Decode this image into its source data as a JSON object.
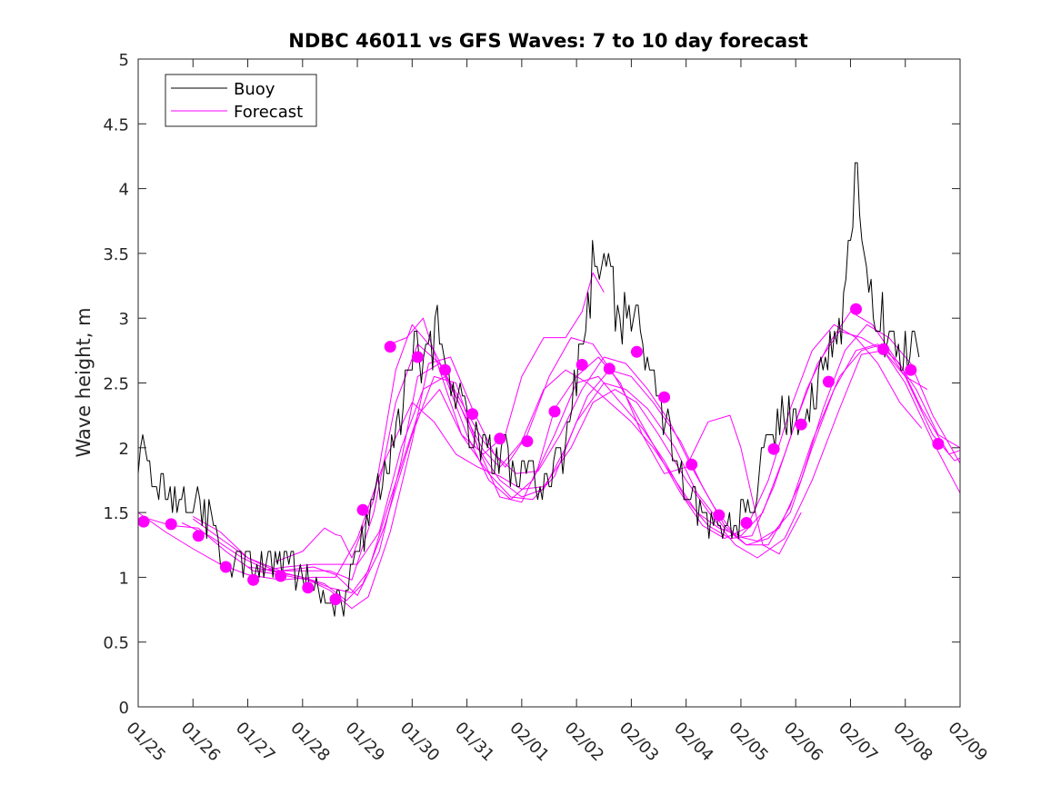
{
  "chart_data": {
    "type": "line",
    "title": "NDBC 46011 vs GFS Waves: 7 to 10 day forecast",
    "xlabel": "",
    "ylabel": "Wave height, m",
    "xlim": [
      0,
      15
    ],
    "ylim": [
      0,
      5
    ],
    "x_tick_labels": [
      "01/25",
      "01/26",
      "01/27",
      "01/28",
      "01/29",
      "01/30",
      "01/31",
      "02/01",
      "02/02",
      "02/03",
      "02/04",
      "02/05",
      "02/06",
      "02/07",
      "02/08",
      "02/09"
    ],
    "y_ticks": [
      0,
      0.5,
      1,
      1.5,
      2,
      2.5,
      3,
      3.5,
      4,
      4.5,
      5
    ],
    "y_tick_labels": [
      "0",
      "0.5",
      "1",
      "1.5",
      "2",
      "2.5",
      "3",
      "3.5",
      "4",
      "4.5",
      "5"
    ],
    "legend": {
      "location": "top-left",
      "entries": [
        "Buoy",
        "Forecast"
      ]
    },
    "colors": {
      "buoy": "#000000",
      "forecast": "#ff00ff"
    },
    "buoy_anchors": {
      "x": [
        0,
        0.05,
        0.2,
        0.5,
        1.0,
        1.3,
        1.6,
        2.0,
        2.5,
        3.0,
        3.3,
        3.5,
        3.7,
        3.9,
        4.0,
        4.3,
        4.6,
        4.9,
        5.05,
        5.2,
        5.5,
        5.7,
        6.0,
        6.4,
        6.8,
        7.0,
        7.3,
        7.5,
        7.8,
        8.0,
        8.15,
        8.3,
        8.6,
        8.9,
        9.2,
        9.5,
        9.8,
        10.0,
        10.3,
        10.6,
        10.9,
        11.0,
        11.2,
        11.5,
        11.8,
        12.0,
        12.4,
        12.8,
        13.0,
        13.1,
        13.25,
        13.4,
        13.7,
        13.9,
        14.1,
        14.25
      ],
      "y": [
        1.8,
        2.1,
        1.8,
        1.6,
        1.6,
        1.45,
        1.1,
        1.1,
        1.1,
        1.05,
        0.9,
        0.8,
        0.75,
        1.1,
        1.15,
        1.6,
        1.9,
        2.5,
        2.9,
        2.7,
        2.9,
        2.5,
        2.2,
        1.95,
        1.9,
        1.85,
        1.7,
        1.8,
        2.0,
        2.6,
        2.7,
        3.5,
        3.2,
        3.0,
        2.8,
        2.4,
        1.9,
        1.7,
        1.5,
        1.45,
        1.4,
        1.45,
        1.6,
        2.0,
        2.3,
        2.2,
        2.5,
        2.9,
        3.5,
        4.2,
        3.3,
        3.1,
        2.9,
        2.8,
        2.75,
        2.65
      ]
    },
    "forecast_dots": {
      "x": [
        0.1,
        0.6,
        1.1,
        1.6,
        2.1,
        2.6,
        3.1,
        3.6,
        4.1,
        4.6,
        5.1,
        5.6,
        6.1,
        6.6,
        7.1,
        7.6,
        8.1,
        8.6,
        9.1,
        9.6,
        10.1,
        10.6,
        11.1,
        11.6,
        12.1,
        12.6,
        13.1,
        13.6,
        14.1,
        14.6
      ],
      "values": [
        1.43,
        1.41,
        1.32,
        1.08,
        0.98,
        1.01,
        0.92,
        0.83,
        1.52,
        2.78,
        2.7,
        2.6,
        2.26,
        2.07,
        2.05,
        2.28,
        2.64,
        2.61,
        2.74,
        2.39,
        1.87,
        1.48,
        1.42,
        1.99,
        2.18,
        2.51,
        3.07,
        2.76,
        2.6,
        2.03
      ]
    },
    "forecast_series": [
      {
        "name": "Forecast 1",
        "x": [
          0.0,
          0.5,
          1.0,
          1.5,
          2.0,
          2.6,
          3.2,
          3.6,
          4.0,
          4.5,
          5.0,
          5.4,
          5.8,
          6.2,
          6.6,
          7.0,
          7.4,
          7.9,
          8.3,
          8.7,
          9.1,
          9.5,
          10.0,
          10.5,
          10.9,
          11.3,
          11.8,
          12.3,
          12.8,
          13.2,
          13.6,
          14.0,
          14.5,
          15.0
        ],
        "y": [
          1.5,
          1.35,
          1.22,
          1.1,
          1.02,
          0.98,
          1.0,
          1.0,
          1.3,
          1.9,
          2.35,
          2.2,
          1.95,
          1.85,
          1.78,
          1.68,
          1.7,
          2.0,
          2.35,
          2.45,
          2.35,
          2.1,
          1.75,
          1.45,
          1.25,
          1.15,
          1.3,
          1.75,
          2.3,
          2.72,
          2.75,
          2.5,
          2.05,
          1.65
        ]
      },
      {
        "name": "Forecast 2",
        "x": [
          0.8,
          1.3,
          1.9,
          2.4,
          3.0,
          3.5,
          3.9,
          4.2,
          4.6,
          5.1,
          5.5,
          5.9,
          6.4,
          6.8,
          7.2,
          7.6,
          8.0,
          8.5,
          8.9,
          9.3,
          9.8,
          10.2,
          10.7,
          11.1,
          11.5,
          11.9,
          12.3,
          12.8,
          13.2,
          13.6,
          14.0,
          14.5,
          14.9,
          15.0
        ],
        "y": [
          1.42,
          1.32,
          1.15,
          1.05,
          1.0,
          0.92,
          0.88,
          1.05,
          1.6,
          2.25,
          2.45,
          2.1,
          1.8,
          1.62,
          1.6,
          1.78,
          2.2,
          2.5,
          2.45,
          2.3,
          2.0,
          1.65,
          1.38,
          1.25,
          1.25,
          1.55,
          2.05,
          2.55,
          2.75,
          2.8,
          2.55,
          2.1,
          1.9,
          1.92
        ]
      },
      {
        "name": "Forecast 3",
        "x": [
          1.0,
          1.5,
          2.0,
          2.5,
          3.0,
          3.4,
          3.8,
          4.1,
          4.5,
          5.0,
          5.4,
          5.8,
          6.2,
          6.6,
          7.0,
          7.4,
          7.8,
          8.2,
          8.6,
          9.0,
          9.4,
          9.9,
          10.3,
          10.7,
          11.1,
          11.5,
          11.9,
          12.3,
          12.7,
          13.1,
          13.5,
          13.9,
          14.3,
          14.8,
          15.0
        ],
        "y": [
          1.45,
          1.3,
          1.15,
          1.05,
          1.0,
          0.95,
          0.82,
          0.95,
          1.4,
          2.1,
          2.55,
          2.5,
          2.0,
          1.75,
          1.62,
          1.68,
          2.0,
          2.4,
          2.6,
          2.55,
          2.35,
          2.05,
          1.7,
          1.4,
          1.25,
          1.3,
          1.5,
          2.0,
          2.45,
          2.75,
          2.8,
          2.65,
          2.3,
          1.95,
          1.98
        ]
      },
      {
        "name": "Forecast 4",
        "x": [
          0.2,
          0.6,
          1.1,
          1.6,
          2.1,
          2.6,
          3.1,
          3.5,
          3.9,
          4.2,
          4.6,
          5.0,
          5.3,
          5.7,
          6.1,
          6.5,
          6.9,
          7.3,
          7.7,
          8.1,
          8.5,
          8.9,
          9.3,
          9.7,
          10.1,
          10.5,
          10.9,
          11.3,
          11.7,
          12.1,
          12.5,
          12.9,
          13.3,
          13.7,
          14.1,
          14.5,
          15.0
        ],
        "y": [
          1.45,
          1.4,
          1.38,
          1.2,
          1.05,
          1.02,
          0.98,
          0.9,
          0.76,
          0.85,
          1.35,
          2.05,
          2.65,
          2.7,
          2.3,
          1.95,
          1.8,
          1.82,
          2.1,
          2.45,
          2.7,
          2.65,
          2.45,
          2.2,
          1.85,
          1.55,
          1.32,
          1.28,
          1.38,
          1.75,
          2.3,
          2.75,
          2.95,
          2.85,
          2.65,
          2.25,
          1.88
        ]
      },
      {
        "name": "Forecast 5",
        "x": [
          1.0,
          1.5,
          2.0,
          2.6,
          3.2,
          3.6,
          4.0,
          4.4,
          4.8,
          5.1,
          5.5,
          5.9,
          6.3,
          6.6,
          7.0,
          7.4,
          7.8,
          8.2,
          8.6,
          9.0,
          9.4,
          9.8,
          10.2,
          10.6,
          11.0,
          11.4,
          11.8,
          12.2,
          12.6,
          13.0,
          13.4,
          13.8,
          14.2,
          14.6,
          15.0
        ],
        "y": [
          1.47,
          1.35,
          1.15,
          1.05,
          1.08,
          1.02,
          0.86,
          1.2,
          1.9,
          2.55,
          2.65,
          2.3,
          1.98,
          1.85,
          2.05,
          2.45,
          2.6,
          2.5,
          2.35,
          2.2,
          2.0,
          1.75,
          1.5,
          1.38,
          1.32,
          1.5,
          1.95,
          2.45,
          2.8,
          3.05,
          2.95,
          2.7,
          2.45,
          2.1,
          2.0
        ]
      },
      {
        "name": "Forecast 6",
        "x": [
          2.0,
          2.5,
          3.0,
          3.5,
          3.9,
          4.3,
          4.7,
          5.1,
          5.5,
          5.9,
          6.3,
          6.7,
          7.1,
          7.5,
          7.9,
          8.3,
          8.7,
          9.1,
          9.5,
          9.9,
          10.3,
          10.7,
          11.1,
          11.5,
          11.9,
          12.3,
          12.7,
          13.1,
          13.5,
          13.9,
          14.3
        ],
        "y": [
          1.08,
          1.05,
          1.05,
          1.05,
          0.98,
          1.5,
          2.35,
          2.8,
          2.65,
          2.35,
          2.05,
          1.85,
          2.1,
          2.55,
          2.85,
          2.8,
          2.55,
          2.25,
          1.95,
          1.65,
          1.4,
          1.3,
          1.38,
          1.75,
          2.3,
          2.75,
          2.95,
          2.85,
          2.65,
          2.35,
          2.15
        ]
      },
      {
        "name": "Forecast 7",
        "x": [
          2.2,
          2.7,
          3.2,
          3.6,
          4.0,
          4.4,
          4.8,
          5.2,
          5.6,
          6.0,
          6.4,
          6.8,
          7.2,
          7.6,
          8.0,
          8.4,
          8.8,
          9.2,
          9.6,
          10.0,
          10.4,
          10.8,
          11.2,
          11.6,
          12.0,
          12.4,
          12.8,
          13.2,
          13.6,
          14.0,
          14.4
        ],
        "y": [
          1.05,
          1.08,
          1.1,
          1.1,
          1.1,
          1.35,
          2.0,
          2.45,
          2.55,
          2.1,
          1.75,
          1.6,
          1.75,
          2.1,
          2.5,
          2.55,
          2.35,
          2.15,
          1.9,
          1.6,
          1.4,
          1.3,
          1.32,
          1.7,
          2.2,
          2.65,
          2.9,
          2.85,
          2.75,
          2.55,
          2.45
        ]
      },
      {
        "name": "Forecast 8",
        "x": [
          2.5,
          3.0,
          3.4,
          3.6,
          3.7,
          3.9,
          4.3,
          4.7,
          5.0,
          5.4,
          5.8,
          6.2,
          6.6,
          7.0,
          7.3,
          7.6,
          8.0,
          8.4,
          8.8,
          9.2,
          9.6,
          10.0,
          10.4,
          10.8,
          11.0,
          11.4,
          11.7,
          12.1
        ],
        "y": [
          1.12,
          1.2,
          1.38,
          1.33,
          1.32,
          1.15,
          1.6,
          2.6,
          2.95,
          2.75,
          2.4,
          2.0,
          1.62,
          1.58,
          1.85,
          2.3,
          2.55,
          2.7,
          2.5,
          2.1,
          1.8,
          1.85,
          2.2,
          2.25,
          2.0,
          1.25,
          1.18,
          1.5
        ]
      },
      {
        "name": "Forecast 9",
        "x": [
          4.6,
          4.9,
          5.2,
          5.5,
          5.9,
          6.3,
          6.7,
          7.0,
          7.4,
          7.8,
          8.1,
          8.3,
          8.5
        ],
        "y": [
          2.8,
          2.85,
          3.0,
          2.6,
          2.1,
          1.95,
          2.1,
          2.55,
          2.85,
          2.85,
          3.05,
          3.35,
          3.2
        ]
      }
    ]
  }
}
